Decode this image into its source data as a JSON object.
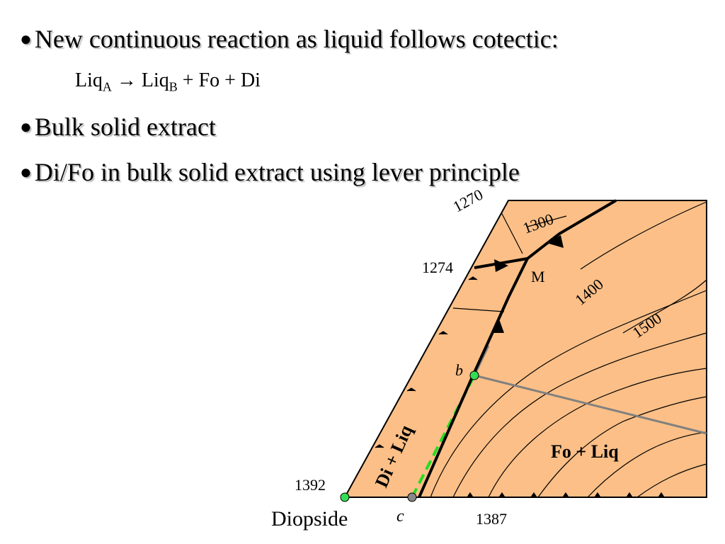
{
  "bullets": [
    "New continuous reaction as liquid follows cotectic:",
    "Bulk solid extract",
    "Di/Fo in bulk solid extract using lever principle"
  ],
  "reaction": [
    "Liq",
    "A",
    " → Liq",
    "B",
    " + Fo + Di"
  ],
  "diagram": {
    "labels": {
      "1270": "1270",
      "1300": "1300",
      "1274": "1274",
      "M": "M",
      "1400": "1400",
      "1500": "1500",
      "b": "b",
      "di_liq": "Di + Liq",
      "fo_liq": "Fo + Liq",
      "1392": "1392",
      "diopside": "Diopside",
      "c": "c",
      "1387": "1387"
    }
  }
}
